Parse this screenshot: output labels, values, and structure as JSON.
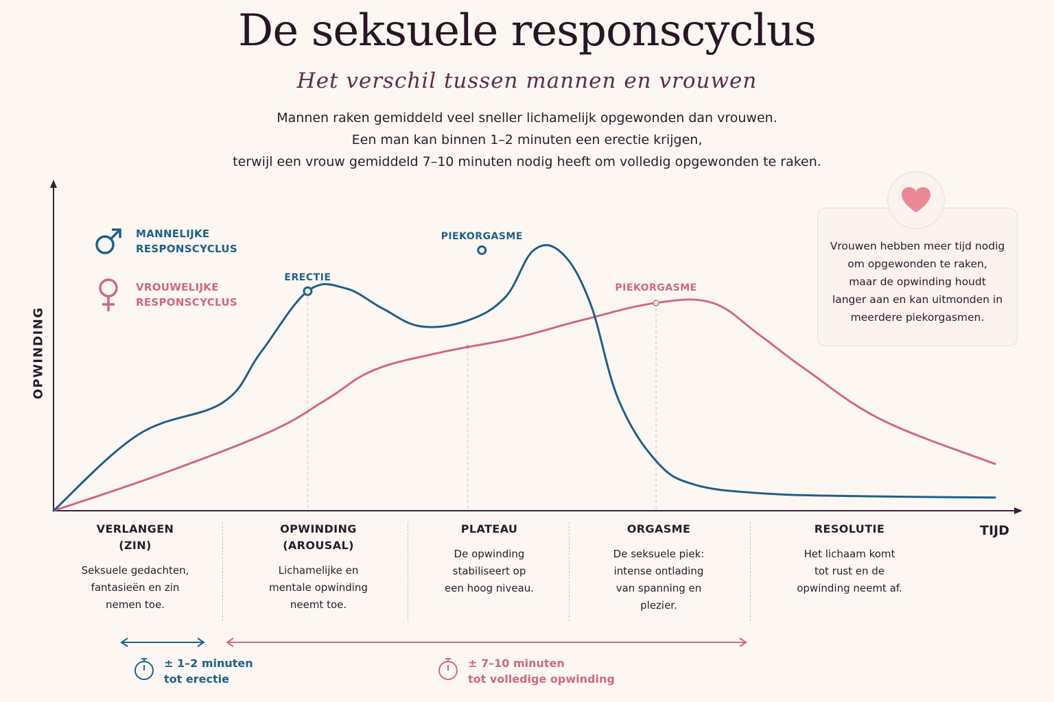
{
  "title": "De seksuele responscyclus",
  "subtitle": "Het verschil tussen mannen en vrouwen",
  "intro": [
    "Mannen raken gemiddeld veel sneller lichamelijk opgewonden dan vrouwen.",
    "Een man kan binnen 1–2 minuten een erectie krijgen,",
    "terwijl een vrouw gemiddeld 7–10 minuten nodig heeft om volledig opgewonden te raken."
  ],
  "legend": {
    "male": [
      "MANNELIJKE",
      "RESPONSCYCLUS"
    ],
    "female": [
      "VROUWELIJKE",
      "RESPONSCYCLUS"
    ]
  },
  "axes": {
    "ylabel": "OPWINDING",
    "xlabel": "TIJD"
  },
  "callout": {
    "icon": "heart-icon",
    "lines": [
      "Vrouwen hebben meer tijd nodig",
      "om opgewonden te raken,",
      "maar de opwinding houdt",
      "langer aan en kan uitmonden in",
      "meerdere piekorgasmen."
    ]
  },
  "phases": [
    {
      "title": [
        "VERLANGEN",
        "(ZIN)"
      ],
      "desc": [
        "Seksuele gedachten,",
        "fantasieën en zin",
        "nemen toe."
      ]
    },
    {
      "title": [
        "OPWINDING",
        "(AROUSAL)"
      ],
      "desc": [
        "Lichamelijke en",
        "mentale opwinding",
        "neemt toe."
      ]
    },
    {
      "title": [
        "PLATEAU"
      ],
      "desc": [
        "De opwinding",
        "stabiliseert op",
        "een hoog niveau."
      ]
    },
    {
      "title": [
        "ORGASME"
      ],
      "desc": [
        "De seksuele piek:",
        "intense ontlading",
        "van spanning en",
        "plezier."
      ]
    },
    {
      "title": [
        "RESOLUTIE"
      ],
      "desc": [
        "Het lichaam komt",
        "tot rust en de",
        "opwinding neemt af."
      ]
    }
  ],
  "timers": {
    "male": [
      "± 1–2 minuten",
      "tot erectie"
    ],
    "female": [
      "± 7–10 minuten",
      "tot volledige opwinding"
    ]
  },
  "chart_data": {
    "type": "line",
    "xlabel": "TIJD",
    "ylabel": "OPWINDING",
    "xlim": [
      0,
      100
    ],
    "ylim": [
      0,
      100
    ],
    "grid": false,
    "legend_position": "top-left",
    "series": [
      {
        "name": "MANNELIJKE RESPONSCYCLUS",
        "color": "#1f5f8b",
        "points": [
          [
            0,
            0
          ],
          [
            9,
            26
          ],
          [
            18,
            37
          ],
          [
            22,
            54
          ],
          [
            27,
            75
          ],
          [
            31,
            76
          ],
          [
            35,
            69
          ],
          [
            39,
            63
          ],
          [
            44,
            65
          ],
          [
            48,
            73
          ],
          [
            51,
            89
          ],
          [
            54,
            88
          ],
          [
            57,
            71
          ],
          [
            60,
            38
          ],
          [
            64,
            17
          ],
          [
            68,
            9
          ],
          [
            75,
            6
          ],
          [
            85,
            5
          ],
          [
            100,
            4.5
          ]
        ],
        "annotations": [
          {
            "x": 27,
            "y": 75,
            "label": "ERECTIE"
          },
          {
            "x": 45.5,
            "y": 89,
            "label": "PIEKORGASME"
          }
        ]
      },
      {
        "name": "VROUWELIJKE RESPONSCYCLUS",
        "color": "#d06782",
        "points": [
          [
            0,
            0
          ],
          [
            11,
            12
          ],
          [
            23,
            27
          ],
          [
            29,
            38
          ],
          [
            34,
            48
          ],
          [
            41,
            54
          ],
          [
            49,
            59
          ],
          [
            56,
            65
          ],
          [
            64,
            71
          ],
          [
            70,
            71
          ],
          [
            75,
            60
          ],
          [
            80,
            48
          ],
          [
            88,
            31
          ],
          [
            100,
            16
          ]
        ],
        "annotations": [
          {
            "x": 64,
            "y": 71,
            "label": "PIEKORGASME"
          }
        ]
      }
    ]
  }
}
